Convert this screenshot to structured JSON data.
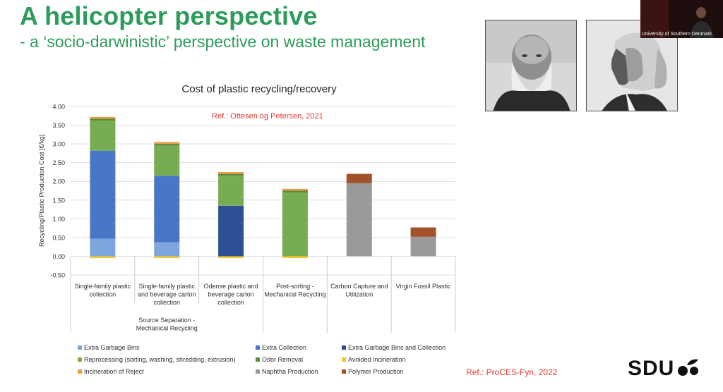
{
  "slide": {
    "title": "A helicopter perspective",
    "subtitle": "- a ‘socio-darwinistic’ perspective on waste management",
    "ref_bottom": "Ref.: ProCES-Fyn, 2022",
    "logo_text": "SDU",
    "video_label": "University of Southern Denmark"
  },
  "chart_data": {
    "type": "bar",
    "stacked": true,
    "title": "Cost of plastic recycling/recovery",
    "annotation": "Ref.: Ottesen og Petersen, 2021",
    "ylabel": "Recycling/Plastic Production Cost [€/kg]",
    "ylim": [
      -0.5,
      4.0
    ],
    "yticks": [
      "4.00",
      "3.50",
      "3.00",
      "2.50",
      "2.00",
      "1.50",
      "1.00",
      "0.50",
      "0.00",
      "-0.50"
    ],
    "grid": true,
    "legend_position": "bottom",
    "categories": [
      [
        "Single-family plastic",
        "collection"
      ],
      [
        "Single-family plastic",
        "and beverage carton",
        "collection"
      ],
      [
        "Odense plastic and",
        "beverage carton",
        "collection"
      ],
      [
        "Post-sorting -",
        "Mechanical Recycling"
      ],
      [
        "Carbon Capture and",
        "Utilization"
      ],
      [
        "Virgin Fossil Plastic"
      ]
    ],
    "group_label": [
      "Source Separation -",
      "Mechanical Recycling"
    ],
    "series": [
      {
        "name": "Extra Garbage Bins",
        "color": "#7ea6dd",
        "values": [
          0.47,
          0.37,
          0,
          0,
          0,
          0
        ]
      },
      {
        "name": "Extra Collection",
        "color": "#4a76c8",
        "values": [
          2.35,
          1.78,
          0,
          0,
          0,
          0
        ]
      },
      {
        "name": "Extra Garbage Bins and Collection",
        "color": "#2f4f94",
        "values": [
          0,
          0,
          1.35,
          0,
          0,
          0
        ]
      },
      {
        "name": "Reprocessing (sorting, washing, shredding, extrusion)",
        "color": "#77ad52",
        "values": [
          0.8,
          0.8,
          0.8,
          1.7,
          0,
          0
        ]
      },
      {
        "name": "Odor Removal",
        "color": "#5a8a3c",
        "values": [
          0.05,
          0.05,
          0.05,
          0.05,
          0,
          0
        ]
      },
      {
        "name": "Avoided Incineration",
        "color": "#f2c531",
        "values": [
          -0.05,
          -0.05,
          -0.05,
          -0.05,
          0,
          0
        ]
      },
      {
        "name": "Incineration of Reject",
        "color": "#ee9a49",
        "values": [
          0.05,
          0.05,
          0.05,
          0.05,
          0,
          0
        ]
      },
      {
        "name": "Naphtha Production",
        "color": "#9a9a9a",
        "values": [
          0,
          0,
          0,
          0,
          1.95,
          0.52
        ]
      },
      {
        "name": "Polymer Production",
        "color": "#a1522a",
        "values": [
          0,
          0,
          0,
          0,
          0.25,
          0.25
        ]
      }
    ]
  }
}
